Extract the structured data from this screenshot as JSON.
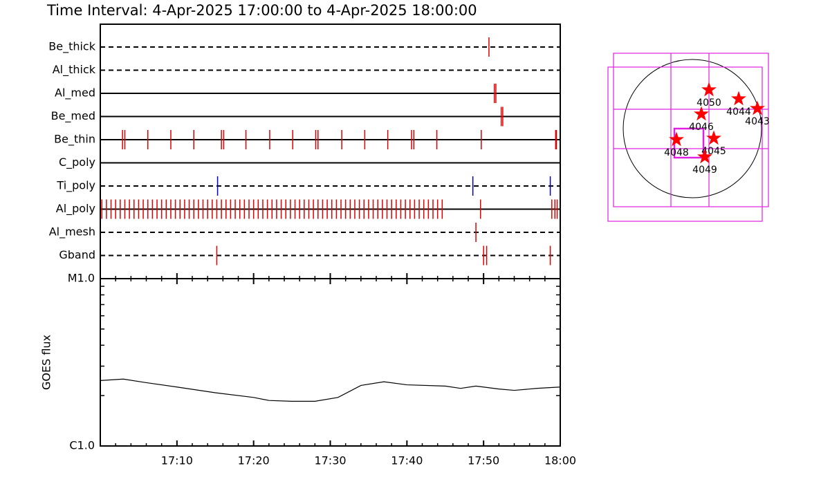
{
  "chart_data": [
    {
      "type": "timeline",
      "title": "Time Interval:  4-Apr-2025 17:00:00 to  4-Apr-2025 18:00:00",
      "xlim": [
        0,
        60
      ],
      "series": [
        {
          "name": "Be_thick",
          "line": "dashed",
          "color": "#dd0000",
          "values": [
            50.7
          ]
        },
        {
          "name": "Al_thick",
          "line": "dashed",
          "color": "#dd0000",
          "values": []
        },
        {
          "name": "Al_med",
          "line": "solid",
          "color": "#dd0000",
          "values": [
            51.4,
            51.6
          ]
        },
        {
          "name": "Be_med",
          "line": "solid",
          "color": "#dd0000",
          "values": [
            52.3,
            52.5
          ]
        },
        {
          "name": "Be_thin",
          "line": "solid",
          "color": "#dd0000",
          "values": [
            2.9,
            3.2,
            6.2,
            9.2,
            12.2,
            15.8,
            16.1,
            19.0,
            22.1,
            25.1,
            28.1,
            28.4,
            31.5,
            34.5,
            37.5,
            40.6,
            40.9,
            43.9,
            49.7,
            59.4,
            59.5
          ]
        },
        {
          "name": "C_poly",
          "line": "solid",
          "color": "#dd0000",
          "values": []
        },
        {
          "name": "Ti_poly",
          "line": "dashed",
          "color": "#0000cc",
          "values": [
            15.3,
            48.6,
            58.7
          ]
        },
        {
          "name": "Al_poly",
          "line": "solid",
          "color": "#dd0000",
          "values": [
            0.2,
            0.8,
            1.4,
            2.0,
            2.6,
            3.2,
            3.8,
            4.4,
            5.0,
            5.6,
            6.2,
            6.8,
            7.4,
            8.0,
            8.6,
            9.2,
            9.8,
            10.4,
            11.0,
            11.6,
            12.2,
            12.8,
            13.4,
            14.0,
            14.6,
            15.2,
            15.8,
            16.4,
            17.0,
            17.6,
            18.2,
            18.8,
            19.4,
            20.0,
            20.6,
            21.2,
            21.8,
            22.4,
            23.0,
            23.6,
            24.2,
            24.8,
            25.4,
            26.0,
            26.6,
            27.2,
            27.8,
            28.4,
            29.0,
            29.6,
            30.2,
            30.8,
            31.4,
            32.0,
            32.6,
            33.2,
            33.8,
            34.4,
            35.0,
            35.6,
            36.2,
            36.8,
            37.4,
            38.0,
            38.6,
            39.2,
            39.8,
            40.4,
            41.0,
            41.6,
            42.2,
            42.8,
            43.4,
            44.0,
            44.6,
            49.6,
            58.9,
            59.3,
            59.6
          ]
        },
        {
          "name": "Al_mesh",
          "line": "dashed",
          "color": "#dd0000",
          "values": [
            49.0
          ]
        },
        {
          "name": "Gband",
          "line": "dashed",
          "color": "#dd0000",
          "values": [
            15.2,
            50.0,
            50.4,
            58.7
          ]
        }
      ]
    },
    {
      "type": "line",
      "y_label": "GOES flux",
      "log_y": true,
      "xlim": [
        0,
        60
      ],
      "xticks": [
        {
          "value": 10,
          "label": "17:10"
        },
        {
          "value": 20,
          "label": "17:20"
        },
        {
          "value": 30,
          "label": "17:30"
        },
        {
          "value": 40,
          "label": "17:40"
        },
        {
          "value": 50,
          "label": "17:50"
        },
        {
          "value": 60,
          "label": "18:00"
        }
      ],
      "xminor": [
        0,
        2,
        4,
        6,
        8,
        12,
        14,
        16,
        18,
        22,
        24,
        26,
        28,
        32,
        34,
        36,
        38,
        42,
        44,
        46,
        48,
        52,
        54,
        56,
        58
      ],
      "ylim": [
        1e-06,
        1e-05
      ],
      "yticks": [
        {
          "value": 1e-06,
          "label": "C1.0"
        },
        {
          "value": 1e-05,
          "label": "M1.0"
        }
      ],
      "yminor": [
        2e-06,
        3e-06,
        4e-06,
        5e-06,
        6e-06,
        7e-06,
        8e-06,
        9e-06
      ],
      "color": "#000000",
      "x": [
        0,
        3,
        6,
        10,
        15,
        20,
        22,
        25,
        28,
        31,
        34,
        37,
        40,
        45,
        47,
        49,
        52,
        54,
        57,
        60
      ],
      "values": [
        2.46e-06,
        2.51e-06,
        2.39e-06,
        2.25e-06,
        2.08e-06,
        1.95e-06,
        1.87e-06,
        1.85e-06,
        1.85e-06,
        1.95e-06,
        2.3e-06,
        2.42e-06,
        2.32e-06,
        2.28e-06,
        2.21e-06,
        2.28e-06,
        2.19e-06,
        2.15e-06,
        2.21e-06,
        2.25e-06
      ]
    },
    {
      "type": "map",
      "regions": [
        "4050",
        "4044",
        "4043",
        "4046",
        "4045",
        "4048",
        "4049"
      ]
    }
  ]
}
